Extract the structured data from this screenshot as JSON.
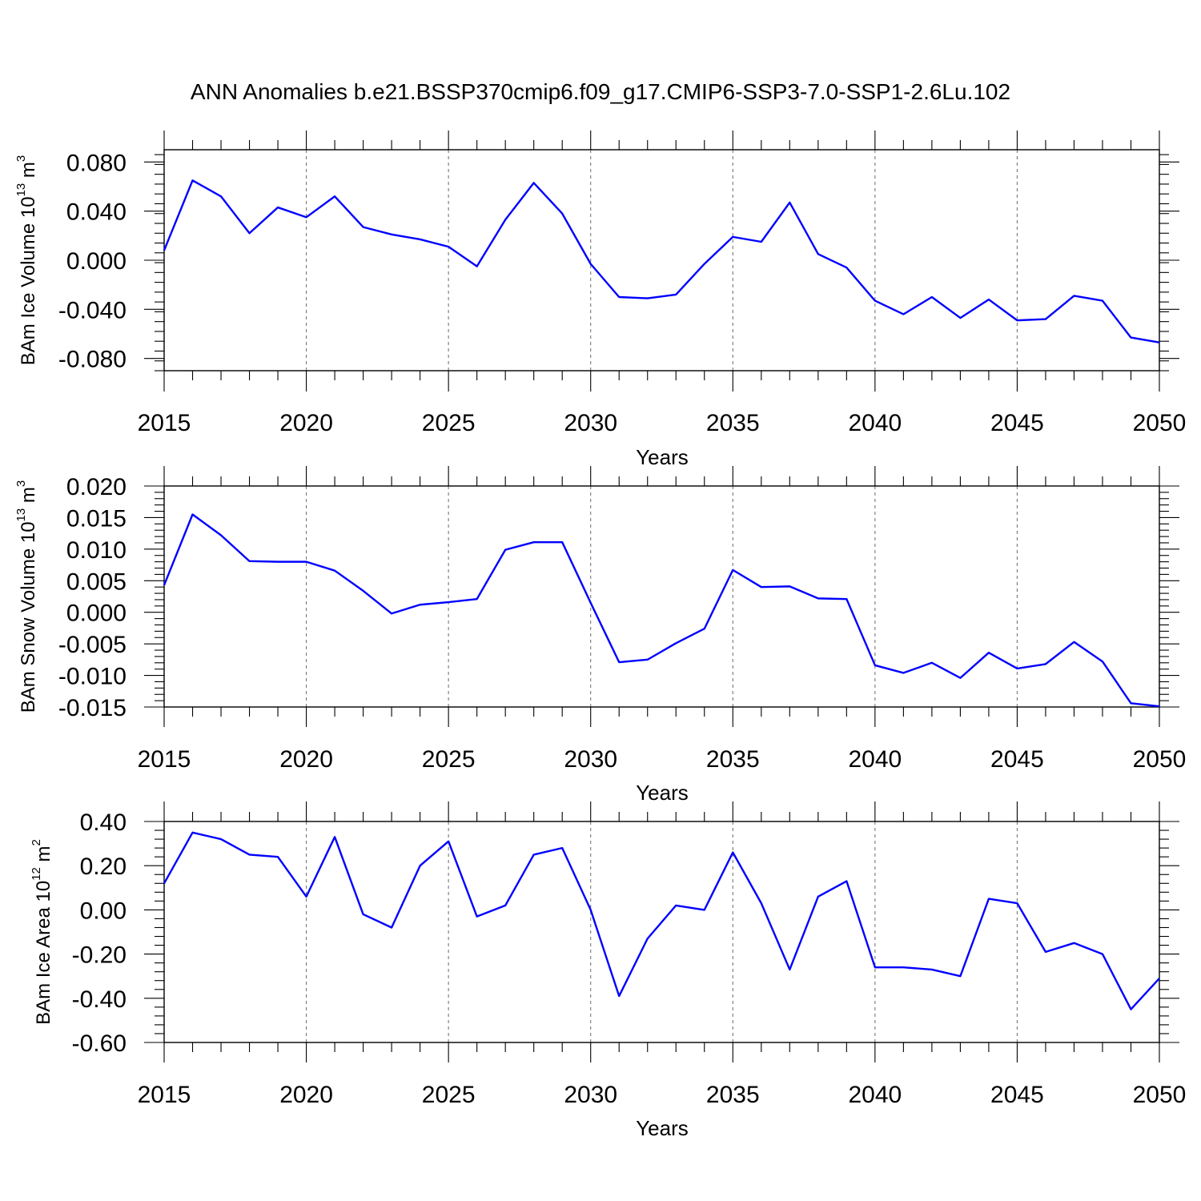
{
  "title": "ANN Anomalies b.e21.BSSP370cmip6.f09_g17.CMIP6-SSP3-7.0-SSP1-2.6Lu.102",
  "line_color": "#0000ff",
  "chart_data": [
    {
      "type": "line",
      "ylabel": {
        "main": "BAm Ice Volume 10",
        "sup1": "13",
        "mid": " m",
        "sup2": "3"
      },
      "xlabel": "Years",
      "xlim": [
        2015,
        2050
      ],
      "ylim": [
        -0.09,
        0.09
      ],
      "xticks": [
        "2015",
        "2020",
        "2025",
        "2030",
        "2035",
        "2040",
        "2045",
        "2050"
      ],
      "yticks": [
        "0.080",
        "0.040",
        "0.000",
        "-0.040",
        "-0.080"
      ],
      "grid": "vertical dashed at major x ticks",
      "series": [
        {
          "x": [
            2015,
            2016,
            2017,
            2018,
            2019,
            2020,
            2021,
            2022,
            2023,
            2024,
            2025,
            2026,
            2027,
            2028,
            2029,
            2030,
            2031,
            2032,
            2033,
            2034,
            2035,
            2036,
            2037,
            2038,
            2039,
            2040,
            2041,
            2042,
            2043,
            2044,
            2045,
            2046,
            2047,
            2048,
            2049,
            2050
          ],
          "values": [
            0.008,
            0.065,
            0.052,
            0.022,
            0.043,
            0.035,
            0.052,
            0.027,
            0.021,
            0.017,
            0.011,
            -0.005,
            0.033,
            0.063,
            0.038,
            -0.003,
            -0.03,
            -0.031,
            -0.028,
            -0.003,
            0.019,
            0.015,
            0.047,
            0.005,
            -0.006,
            -0.033,
            -0.044,
            -0.03,
            -0.047,
            -0.032,
            -0.049,
            -0.048,
            -0.029,
            -0.033,
            -0.063,
            -0.067
          ]
        }
      ]
    },
    {
      "type": "line",
      "ylabel": {
        "main": "BAm Snow Volume 10",
        "sup1": "13",
        "mid": " m",
        "sup2": "3"
      },
      "xlabel": "Years",
      "xlim": [
        2015,
        2050
      ],
      "ylim": [
        -0.015,
        0.02
      ],
      "xticks": [
        "2015",
        "2020",
        "2025",
        "2030",
        "2035",
        "2040",
        "2045",
        "2050"
      ],
      "yticks": [
        "0.020",
        "0.015",
        "0.010",
        "0.005",
        "0.000",
        "-0.005",
        "-0.010",
        "-0.015"
      ],
      "grid": "vertical dashed at major x ticks",
      "series": [
        {
          "x": [
            2015,
            2016,
            2017,
            2018,
            2019,
            2020,
            2021,
            2022,
            2023,
            2024,
            2025,
            2026,
            2027,
            2028,
            2029,
            2030,
            2031,
            2032,
            2033,
            2034,
            2035,
            2036,
            2037,
            2038,
            2039,
            2040,
            2041,
            2042,
            2043,
            2044,
            2045,
            2046,
            2047,
            2048,
            2049,
            2050
          ],
          "values": [
            0.0043,
            0.0155,
            0.0122,
            0.0081,
            0.008,
            0.008,
            0.0066,
            0.0034,
            -0.0002,
            0.0012,
            0.0016,
            0.0021,
            0.0099,
            0.0111,
            0.0111,
            0.0015,
            -0.0079,
            -0.0075,
            -0.0049,
            -0.0026,
            0.0067,
            0.004,
            0.0041,
            0.0022,
            0.0021,
            -0.0084,
            -0.0096,
            -0.008,
            -0.0104,
            -0.0064,
            -0.0089,
            -0.0082,
            -0.0047,
            -0.0078,
            -0.0144,
            -0.0149
          ]
        }
      ]
    },
    {
      "type": "line",
      "ylabel": {
        "main": "BAm Ice Area 10",
        "sup1": "12",
        "mid": " m",
        "sup2": "2"
      },
      "xlabel": "Years",
      "xlim": [
        2015,
        2050
      ],
      "ylim": [
        -0.6,
        0.4
      ],
      "xticks": [
        "2015",
        "2020",
        "2025",
        "2030",
        "2035",
        "2040",
        "2045",
        "2050"
      ],
      "yticks": [
        "0.40",
        "0.20",
        "0.00",
        "-0.20",
        "-0.40",
        "-0.60"
      ],
      "grid": "vertical dashed at major x ticks",
      "series": [
        {
          "x": [
            2015,
            2016,
            2017,
            2018,
            2019,
            2020,
            2021,
            2022,
            2023,
            2024,
            2025,
            2026,
            2027,
            2028,
            2029,
            2030,
            2031,
            2032,
            2033,
            2034,
            2035,
            2036,
            2037,
            2038,
            2039,
            2040,
            2041,
            2042,
            2043,
            2044,
            2045,
            2046,
            2047,
            2048,
            2049,
            2050
          ],
          "values": [
            0.12,
            0.35,
            0.32,
            0.25,
            0.24,
            0.06,
            0.33,
            -0.02,
            -0.08,
            0.2,
            0.31,
            -0.03,
            0.02,
            0.25,
            0.28,
            0.0,
            -0.39,
            -0.13,
            0.02,
            0.0,
            0.26,
            0.03,
            -0.27,
            0.06,
            0.13,
            -0.26,
            -0.26,
            -0.27,
            -0.3,
            0.05,
            0.03,
            -0.19,
            -0.15,
            -0.2,
            -0.45,
            -0.31
          ]
        }
      ]
    }
  ]
}
